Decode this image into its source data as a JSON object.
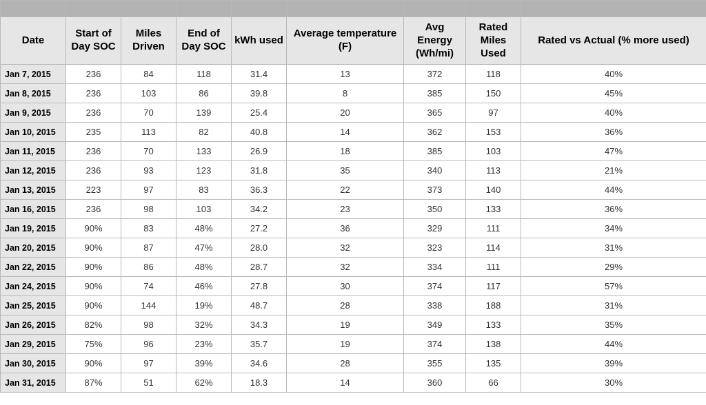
{
  "table": {
    "columns": [
      "Date",
      "Start of Day SOC",
      "Miles Driven",
      "End of Day SOC",
      "kWh used",
      "Average temperature (F)",
      "Avg Energy (Wh/mi)",
      "Rated Miles Used",
      "Rated vs Actual (% more used)"
    ],
    "rows": [
      [
        "Jan 7, 2015",
        "236",
        "84",
        "118",
        "31.4",
        "13",
        "372",
        "118",
        "40%"
      ],
      [
        "Jan 8, 2015",
        "236",
        "103",
        "86",
        "39.8",
        "8",
        "385",
        "150",
        "45%"
      ],
      [
        "Jan 9, 2015",
        "236",
        "70",
        "139",
        "25.4",
        "20",
        "365",
        "97",
        "40%"
      ],
      [
        "Jan 10, 2015",
        "235",
        "113",
        "82",
        "40.8",
        "14",
        "362",
        "153",
        "36%"
      ],
      [
        "Jan 11, 2015",
        "236",
        "70",
        "133",
        "26.9",
        "18",
        "385",
        "103",
        "47%"
      ],
      [
        "Jan 12, 2015",
        "236",
        "93",
        "123",
        "31.8",
        "35",
        "340",
        "113",
        "21%"
      ],
      [
        "Jan 13, 2015",
        "223",
        "97",
        "83",
        "36.3",
        "22",
        "373",
        "140",
        "44%"
      ],
      [
        "Jan 16, 2015",
        "236",
        "98",
        "103",
        "34.2",
        "23",
        "350",
        "133",
        "36%"
      ],
      [
        "Jan 19, 2015",
        "90%",
        "83",
        "48%",
        "27.2",
        "36",
        "329",
        "111",
        "34%"
      ],
      [
        "Jan 20, 2015",
        "90%",
        "87",
        "47%",
        "28.0",
        "32",
        "323",
        "114",
        "31%"
      ],
      [
        "Jan 22, 2015",
        "90%",
        "86",
        "48%",
        "28.7",
        "32",
        "334",
        "111",
        "29%"
      ],
      [
        "Jan 24, 2015",
        "90%",
        "74",
        "46%",
        "27.8",
        "30",
        "374",
        "117",
        "57%"
      ],
      [
        "Jan 25, 2015",
        "90%",
        "144",
        "19%",
        "48.7",
        "28",
        "338",
        "188",
        "31%"
      ],
      [
        "Jan 26, 2015",
        "82%",
        "98",
        "32%",
        "34.3",
        "19",
        "349",
        "133",
        "35%"
      ],
      [
        "Jan 29, 2015",
        "75%",
        "96",
        "23%",
        "35.7",
        "19",
        "374",
        "138",
        "44%"
      ],
      [
        "Jan 30, 2015",
        "90%",
        "97",
        "39%",
        "34.6",
        "28",
        "355",
        "135",
        "39%"
      ],
      [
        "Jan 31, 2015",
        "87%",
        "51",
        "62%",
        "18.3",
        "14",
        "360",
        "66",
        "30%"
      ]
    ],
    "header_bg": "#e6e6e6",
    "date_col_bg": "#e6e6e6",
    "top_spacer_bg": "#b3b3b3",
    "border_color": "#b8b8b8",
    "body_font_size": 13,
    "header_font_size": 15
  }
}
